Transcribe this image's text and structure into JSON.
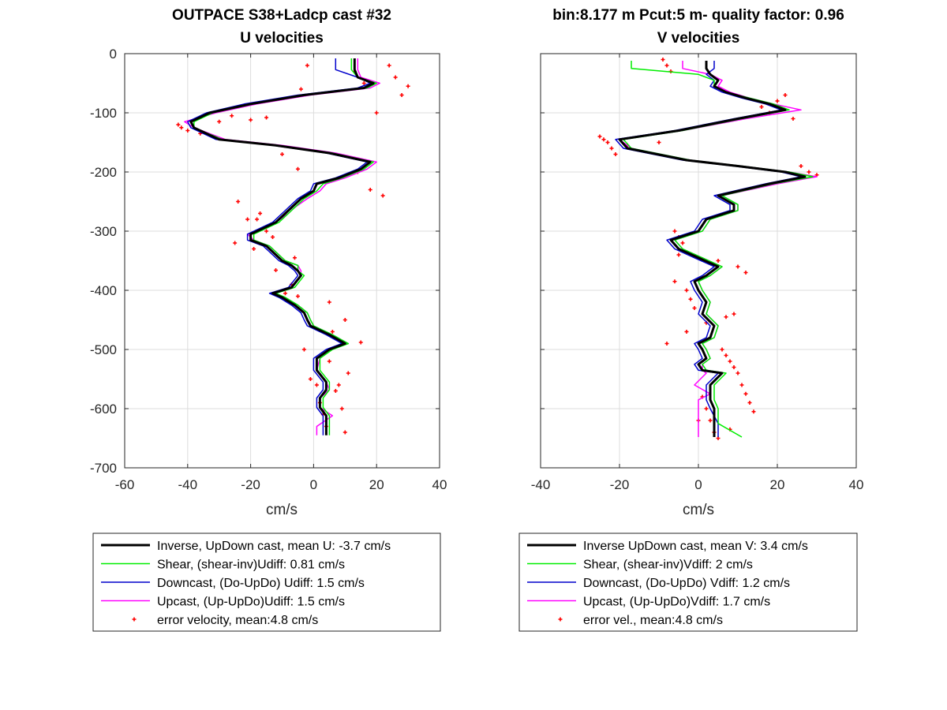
{
  "colors": {
    "inverse": "#000000",
    "shear": "#00ee00",
    "down": "#0000cc",
    "up": "#ff00ff",
    "error": "#ff0000",
    "grid": "#dcdcdc"
  },
  "chart_data": [
    {
      "type": "line",
      "title": "OUTPACE S38+Ladcp cast #32",
      "subtitle": "U velocities",
      "xlabel": "cm/s",
      "ylabel": "",
      "xlim": [
        -60,
        40
      ],
      "ylim": [
        -700,
        0
      ],
      "xticks": [
        -60,
        -40,
        -20,
        0,
        20,
        40
      ],
      "yticks": [
        0,
        -100,
        -200,
        -300,
        -400,
        -500,
        -600,
        -700
      ],
      "grid": true,
      "legend_position": "below",
      "series": [
        {
          "name": "Inverse, UpDown cast, mean U:  -3.7 cm/s",
          "color": "#000000",
          "width": 3,
          "x": [
            13,
            13,
            14,
            19,
            16,
            -3,
            -20,
            -33,
            -39,
            -38,
            -30,
            -12,
            5,
            18,
            15,
            8,
            1,
            0,
            -4,
            -7,
            -9,
            -12,
            -16,
            -20,
            -20,
            -15,
            -12,
            -10,
            -7,
            -5,
            -4,
            -7,
            -13,
            -10,
            -6,
            -3,
            -2,
            -1,
            5,
            10,
            5,
            1,
            1,
            4,
            4,
            2,
            2,
            4,
            4,
            4
          ],
          "y": [
            -8,
            -27,
            -40,
            -50,
            -58,
            -70,
            -85,
            -100,
            -115,
            -125,
            -145,
            -155,
            -168,
            -183,
            -195,
            -210,
            -220,
            -232,
            -245,
            -260,
            -270,
            -285,
            -295,
            -305,
            -315,
            -325,
            -340,
            -350,
            -358,
            -367,
            -375,
            -395,
            -405,
            -412,
            -425,
            -438,
            -450,
            -460,
            -475,
            -490,
            -500,
            -515,
            -535,
            -555,
            -568,
            -582,
            -598,
            -612,
            -630,
            -645
          ]
        },
        {
          "name": "Shear, (shear-inv)Udiff:  0.81 cm/s",
          "color": "#00ee00",
          "width": 1.5,
          "x": [
            12,
            12,
            14,
            20,
            17,
            -2,
            -19,
            -32,
            -38,
            -38,
            -29,
            -11,
            6,
            19,
            16,
            9,
            3,
            1,
            -3,
            -6,
            -8,
            -11,
            -15,
            -19,
            -19,
            -14,
            -11,
            -9,
            -5,
            -5,
            -3,
            -6,
            -12,
            -9,
            -5,
            -2,
            -1,
            0,
            6,
            11,
            6,
            2,
            2,
            5,
            5,
            3,
            3,
            5,
            5,
            5
          ],
          "y": [
            -8,
            -27,
            -40,
            -50,
            -58,
            -70,
            -85,
            -100,
            -115,
            -125,
            -145,
            -155,
            -168,
            -183,
            -195,
            -210,
            -220,
            -232,
            -245,
            -260,
            -270,
            -285,
            -295,
            -305,
            -315,
            -325,
            -340,
            -350,
            -358,
            -367,
            -375,
            -395,
            -405,
            -412,
            -425,
            -438,
            -450,
            -460,
            -475,
            -490,
            -500,
            -515,
            -535,
            -555,
            -568,
            -582,
            -598,
            -612,
            -630,
            -645
          ]
        },
        {
          "name": "Downcast, (Do-UpDo) Udiff:  1.5 cm/s",
          "color": "#0000cc",
          "width": 1.5,
          "x": [
            7,
            7,
            14,
            18,
            14,
            -5,
            -22,
            -34,
            -40,
            -39,
            -31,
            -13,
            4,
            17,
            14,
            7,
            0,
            -1,
            -5,
            -8,
            -10,
            -13,
            -17,
            -21,
            -21,
            -16,
            -13,
            -11,
            -8,
            -6,
            -5,
            -8,
            -14,
            -11,
            -7,
            -4,
            -3,
            -2,
            4,
            9,
            4,
            0,
            0,
            3,
            3,
            1,
            1,
            3,
            3,
            3
          ],
          "y": [
            -8,
            -27,
            -40,
            -50,
            -58,
            -70,
            -85,
            -100,
            -115,
            -125,
            -145,
            -155,
            -168,
            -183,
            -195,
            -210,
            -220,
            -232,
            -245,
            -260,
            -270,
            -285,
            -295,
            -305,
            -315,
            -325,
            -340,
            -350,
            -358,
            -367,
            -375,
            -395,
            -405,
            -412,
            -425,
            -438,
            -450,
            -460,
            -475,
            -490,
            -500,
            -515,
            -535,
            -555,
            -568,
            -582,
            -598,
            -612,
            -630,
            -645
          ]
        },
        {
          "name": "Upcast, (Up-UpDo)Udiff:  1.5 cm/s",
          "color": "#ff00ff",
          "width": 1.5,
          "x": [
            14,
            14,
            15,
            21,
            18,
            -1,
            -18,
            -31,
            -41,
            -38,
            -28,
            -10,
            7,
            20,
            17,
            10,
            4,
            2,
            -2,
            -6,
            -8,
            -12,
            -15,
            -21,
            -19,
            -14,
            -11,
            -9,
            -5,
            -4,
            -4,
            -7,
            -13,
            -9,
            -5,
            -2,
            -1,
            0,
            6,
            11,
            5,
            2,
            1,
            4,
            5,
            2,
            2,
            6,
            1,
            1
          ],
          "y": [
            -8,
            -27,
            -40,
            -50,
            -58,
            -70,
            -85,
            -100,
            -115,
            -125,
            -145,
            -155,
            -168,
            -183,
            -195,
            -210,
            -220,
            -232,
            -245,
            -260,
            -270,
            -285,
            -295,
            -305,
            -315,
            -325,
            -340,
            -350,
            -358,
            -367,
            -375,
            -395,
            -405,
            -412,
            -425,
            -438,
            -450,
            -460,
            -475,
            -490,
            -500,
            -515,
            -535,
            -555,
            -568,
            -582,
            -598,
            -612,
            -630,
            -645
          ]
        },
        {
          "name": "error velocity, mean:4.8 cm/s",
          "color": "#ff0000",
          "marker": "dots",
          "x": [
            -43,
            -42,
            -40,
            -36,
            -30,
            -26,
            -24,
            -21,
            -19,
            -17,
            -15,
            -13,
            -9,
            -8,
            -7,
            -6,
            -5,
            -4,
            -3,
            -2,
            -1,
            1,
            2,
            3,
            4,
            5,
            6,
            7,
            8,
            9,
            10,
            11,
            13,
            14,
            16,
            18,
            20,
            22,
            24,
            26,
            28,
            30,
            -20,
            -15,
            -10,
            -5,
            5,
            10,
            15,
            -25,
            -18,
            -12
          ],
          "y": [
            -120,
            -125,
            -130,
            -135,
            -115,
            -105,
            -250,
            -280,
            -330,
            -270,
            -300,
            -310,
            -405,
            -355,
            -390,
            -345,
            -410,
            -60,
            -500,
            -20,
            -550,
            -560,
            -590,
            -610,
            -630,
            -520,
            -470,
            -570,
            -560,
            -600,
            -640,
            -540,
            -30,
            -200,
            -50,
            -230,
            -100,
            -240,
            -20,
            -40,
            -70,
            -55,
            -112,
            -108,
            -170,
            -195,
            -420,
            -450,
            -488,
            -320,
            -280,
            -366
          ]
        }
      ]
    },
    {
      "type": "line",
      "title": "bin:8.177 m  Pcut:5 m- quality factor:  0.96",
      "subtitle": "V velocities",
      "xlabel": "cm/s",
      "ylabel": "",
      "xlim": [
        -40,
        40
      ],
      "ylim": [
        -700,
        0
      ],
      "xticks": [
        -40,
        -20,
        0,
        20,
        40
      ],
      "yticks": [
        0,
        -100,
        -200,
        -300,
        -400,
        -500,
        -600,
        -700
      ],
      "grid": true,
      "legend_position": "below",
      "series": [
        {
          "name": "Inverse UpDown cast, mean V:  3.4 cm/s",
          "color": "#000000",
          "width": 3,
          "x": [
            2,
            2,
            3,
            5,
            4,
            7,
            12,
            18,
            22,
            10,
            -5,
            -20,
            -18,
            -3,
            10,
            22,
            27,
            18,
            5,
            9,
            9,
            2,
            0,
            -7,
            -5,
            0,
            5,
            2,
            -1,
            0,
            2,
            1,
            4,
            3,
            0,
            1,
            2,
            0,
            1,
            6,
            3,
            3,
            3,
            4,
            4,
            4
          ],
          "y": [
            -12,
            -25,
            -35,
            -45,
            -55,
            -65,
            -75,
            -85,
            -95,
            -110,
            -130,
            -145,
            -160,
            -180,
            -190,
            -200,
            -208,
            -220,
            -240,
            -255,
            -265,
            -280,
            -300,
            -315,
            -330,
            -345,
            -360,
            -375,
            -385,
            -400,
            -420,
            -440,
            -460,
            -480,
            -490,
            -500,
            -515,
            -525,
            -535,
            -540,
            -560,
            -575,
            -585,
            -600,
            -625,
            -648
          ]
        },
        {
          "name": "Shear, (shear-inv)Vdiff:  2 cm/s",
          "color": "#00ee00",
          "width": 1.5,
          "x": [
            -17,
            -17,
            0,
            4,
            4,
            7,
            13,
            19,
            23,
            11,
            -4,
            -19,
            -17,
            -2,
            11,
            23,
            29,
            19,
            6,
            10,
            10,
            3,
            1,
            -6,
            -4,
            1,
            6,
            3,
            0,
            1,
            3,
            2,
            5,
            4,
            1,
            2,
            3,
            1,
            2,
            7,
            4,
            4,
            4,
            5,
            5,
            11
          ],
          "y": [
            -12,
            -25,
            -35,
            -45,
            -55,
            -65,
            -75,
            -85,
            -95,
            -110,
            -130,
            -145,
            -160,
            -180,
            -190,
            -200,
            -208,
            -220,
            -240,
            -255,
            -265,
            -280,
            -300,
            -315,
            -330,
            -345,
            -360,
            -375,
            -385,
            -400,
            -420,
            -440,
            -460,
            -480,
            -490,
            -500,
            -515,
            -525,
            -535,
            -540,
            -560,
            -575,
            -585,
            -600,
            -625,
            -648
          ]
        },
        {
          "name": "Downcast, (Do-UpDo) Vdiff:  1.2 cm/s",
          "color": "#0000cc",
          "width": 1.5,
          "x": [
            4,
            4,
            2,
            4,
            3,
            6,
            11,
            17,
            21,
            9,
            -6,
            -21,
            -19,
            -4,
            9,
            21,
            26,
            17,
            4,
            8,
            8,
            1,
            -1,
            -8,
            -6,
            -1,
            4,
            1,
            -2,
            -1,
            1,
            0,
            3,
            2,
            -1,
            0,
            1,
            -1,
            0,
            5,
            2,
            2,
            2,
            3,
            5,
            5
          ],
          "y": [
            -12,
            -25,
            -35,
            -45,
            -55,
            -65,
            -75,
            -85,
            -95,
            -110,
            -130,
            -145,
            -160,
            -180,
            -190,
            -200,
            -208,
            -220,
            -240,
            -255,
            -265,
            -280,
            -300,
            -315,
            -330,
            -345,
            -360,
            -375,
            -385,
            -400,
            -420,
            -440,
            -460,
            -480,
            -490,
            -500,
            -515,
            -525,
            -535,
            -540,
            -560,
            -575,
            -585,
            -600,
            -625,
            -648
          ]
        },
        {
          "name": "Upcast, (Up-UpDo)Vdiff:  1.7 cm/s",
          "color": "#ff00ff",
          "width": 1.5,
          "x": [
            -4,
            -4,
            3,
            6,
            5,
            8,
            13,
            19,
            26,
            12,
            -4,
            -20,
            -17,
            -2,
            11,
            23,
            30,
            20,
            6,
            10,
            10,
            3,
            1,
            -6,
            -4,
            1,
            6,
            3,
            0,
            1,
            3,
            2,
            5,
            4,
            1,
            2,
            3,
            1,
            1,
            2,
            -1,
            3,
            0,
            0,
            0,
            0
          ],
          "y": [
            -12,
            -25,
            -35,
            -45,
            -55,
            -65,
            -75,
            -85,
            -95,
            -110,
            -130,
            -145,
            -160,
            -180,
            -190,
            -200,
            -208,
            -220,
            -240,
            -255,
            -265,
            -280,
            -300,
            -315,
            -330,
            -345,
            -360,
            -375,
            -385,
            -400,
            -420,
            -440,
            -460,
            -480,
            -490,
            -500,
            -515,
            -525,
            -535,
            -540,
            -560,
            -575,
            -585,
            -600,
            -625,
            -648
          ]
        },
        {
          "name": "error vel., mean:4.8 cm/s",
          "color": "#ff0000",
          "marker": "dots",
          "x": [
            -25,
            -24,
            -23,
            -22,
            -21,
            -9,
            -8,
            -7,
            -6,
            -5,
            -4,
            -3,
            -2,
            -1,
            1,
            2,
            3,
            4,
            5,
            6,
            7,
            8,
            9,
            10,
            11,
            12,
            13,
            14,
            16,
            18,
            20,
            22,
            24,
            26,
            28,
            30,
            -18,
            -10,
            -5,
            5,
            10,
            12,
            -8,
            -3,
            2,
            7,
            9,
            -6,
            0,
            8
          ],
          "y": [
            -140,
            -145,
            -150,
            -160,
            -170,
            -10,
            -20,
            -30,
            -300,
            -310,
            -320,
            -400,
            -415,
            -430,
            -580,
            -600,
            -620,
            -640,
            -650,
            -500,
            -510,
            -520,
            -530,
            -540,
            -560,
            -575,
            -590,
            -605,
            -90,
            -100,
            -80,
            -70,
            -110,
            -190,
            -200,
            -205,
            -155,
            -150,
            -340,
            -350,
            -360,
            -370,
            -490,
            -470,
            -455,
            -445,
            -440,
            -385,
            -620,
            -635
          ]
        }
      ]
    }
  ]
}
